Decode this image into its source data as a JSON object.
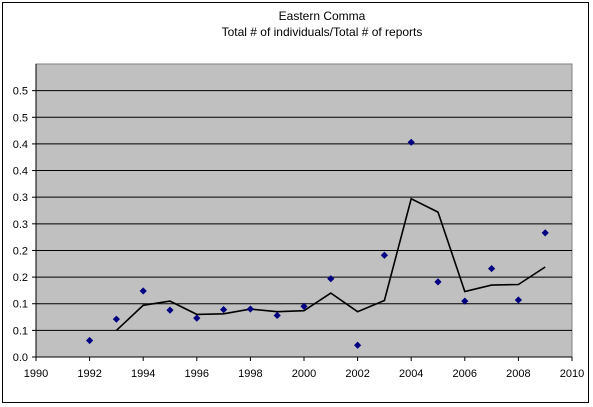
{
  "chart_data": {
    "type": "scatter",
    "title": "Eastern Comma",
    "subtitle": "Total # of individuals/Total # of reports",
    "xlabel": "",
    "ylabel": "",
    "xlim": [
      1990,
      2010
    ],
    "ylim": [
      0,
      0.55
    ],
    "x_tick_values": [
      1990,
      1992,
      1994,
      1996,
      1998,
      2000,
      2002,
      2004,
      2006,
      2008,
      2010
    ],
    "x_tick_labels": [
      "1990",
      "1992",
      "1994",
      "1996",
      "1998",
      "2000",
      "2002",
      "2004",
      "2006",
      "2008",
      "2010"
    ],
    "y_tick_values": [
      0,
      0.05,
      0.1,
      0.15,
      0.2,
      0.25,
      0.3,
      0.35,
      0.4,
      0.45,
      0.5
    ],
    "y_tick_labels": [
      "0.0",
      "0.1",
      "0.1",
      "0.2",
      "0.2",
      "0.3",
      "0.3",
      "0.4",
      "0.4",
      "0.5",
      "0.5"
    ],
    "grid": "horizontal",
    "plot_background": "#c0c0c0",
    "marker_color": "#000080",
    "line_color": "#000000",
    "series": [
      {
        "type": "scatter",
        "x": [
          1992,
          1993,
          1994,
          1995,
          1996,
          1997,
          1998,
          1999,
          2000,
          2001,
          2002,
          2003,
          2004,
          2005,
          2006,
          2007,
          2008,
          2009
        ],
        "y": [
          0.031,
          0.071,
          0.124,
          0.088,
          0.073,
          0.089,
          0.09,
          0.078,
          0.095,
          0.147,
          0.022,
          0.191,
          0.403,
          0.141,
          0.105,
          0.166,
          0.107,
          0.233
        ]
      },
      {
        "type": "line",
        "x": [
          1993,
          1994,
          1995,
          1996,
          1997,
          1998,
          1999,
          2000,
          2001,
          2002,
          2003,
          2004,
          2005,
          2006,
          2007,
          2008,
          2009
        ],
        "y": [
          0.05,
          0.097,
          0.105,
          0.08,
          0.081,
          0.09,
          0.085,
          0.087,
          0.12,
          0.085,
          0.106,
          0.297,
          0.272,
          0.123,
          0.135,
          0.136,
          0.169
        ]
      }
    ]
  }
}
